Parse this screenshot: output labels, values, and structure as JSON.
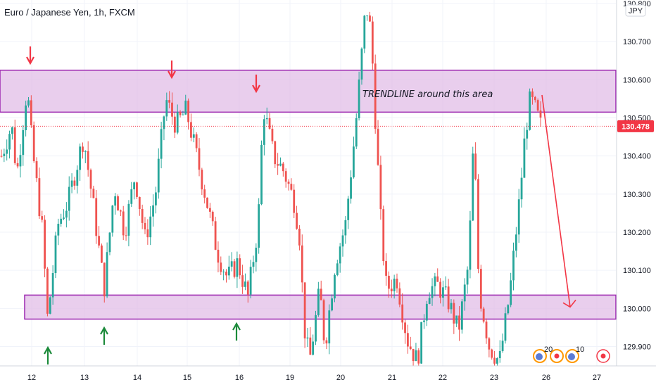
{
  "symbol_title": "Euro / Japanese Yen, 1h, FXCM",
  "currency_badge": "JPY",
  "last_price_label": "130.478",
  "annotation_text": "TRENDLINE around this area",
  "event_badges": [
    "20",
    "10"
  ],
  "colors": {
    "up": "#26a69a",
    "down": "#ef5350",
    "zone_fill": "#e1bee7",
    "zone_border": "#9c27b0",
    "arrow_down": "#f23645",
    "arrow_up": "#1b8a3a",
    "last_price_bg": "#f23645",
    "grid": "#f0f3fa"
  },
  "chart_data": {
    "type": "candlestick",
    "title": "Euro / Japanese Yen, 1h, FXCM",
    "y_axis": {
      "unit": "JPY",
      "range": [
        129.85,
        130.81
      ],
      "ticks": [
        "130.800",
        "130.700",
        "130.600",
        "130.500",
        "130.400",
        "130.300",
        "130.200",
        "130.100",
        "130.000",
        "129.900"
      ]
    },
    "x_axis": {
      "ticks": [
        "12",
        "13",
        "14",
        "15",
        "16",
        "19",
        "20",
        "21",
        "22",
        "23",
        "26",
        "27"
      ]
    },
    "grid": true,
    "last_price": 130.478,
    "last_price_label": "130.478",
    "resistance_zone": [
      130.515,
      130.625
    ],
    "support_zone": [
      129.972,
      130.035
    ],
    "projection": {
      "from": {
        "x": "25",
        "y": 130.56
      },
      "to": {
        "x": "26",
        "y": 130.0
      }
    },
    "annotation": "TRENDLINE around this area",
    "price_path": [
      [
        130.4,
        0
      ],
      [
        130.48,
        2
      ],
      [
        130.35,
        3
      ],
      [
        130.58,
        5
      ],
      [
        130.42,
        6
      ],
      [
        130.2,
        8
      ],
      [
        129.97,
        9
      ],
      [
        130.22,
        11
      ],
      [
        130.28,
        13
      ],
      [
        130.45,
        16
      ],
      [
        130.26,
        18
      ],
      [
        130.05,
        20
      ],
      [
        130.32,
        22
      ],
      [
        130.2,
        24
      ],
      [
        130.35,
        26
      ],
      [
        130.18,
        28
      ],
      [
        130.3,
        30
      ],
      [
        130.55,
        32
      ],
      [
        130.48,
        34
      ],
      [
        130.52,
        36
      ],
      [
        130.4,
        38
      ],
      [
        130.28,
        40
      ],
      [
        130.15,
        42
      ],
      [
        130.08,
        44
      ],
      [
        130.12,
        46
      ],
      [
        130.03,
        48
      ],
      [
        130.22,
        50
      ],
      [
        130.53,
        51
      ],
      [
        130.4,
        53
      ],
      [
        130.36,
        55
      ],
      [
        130.28,
        57
      ],
      [
        130.2,
        58
      ],
      [
        129.95,
        59
      ],
      [
        129.86,
        60
      ],
      [
        130.05,
        62
      ],
      [
        129.9,
        63
      ],
      [
        130.12,
        65
      ],
      [
        130.22,
        67
      ],
      [
        130.48,
        69
      ],
      [
        130.8,
        71
      ],
      [
        130.72,
        72
      ],
      [
        130.45,
        73
      ],
      [
        130.2,
        74
      ],
      [
        130.05,
        75
      ],
      [
        130.08,
        77
      ],
      [
        129.92,
        79
      ],
      [
        129.86,
        81
      ],
      [
        130.05,
        83
      ],
      [
        130.06,
        85
      ],
      [
        130.02,
        87
      ],
      [
        129.94,
        89
      ],
      [
        130.12,
        91
      ],
      [
        130.46,
        92
      ],
      [
        130.05,
        93
      ],
      [
        129.9,
        95
      ],
      [
        129.86,
        97
      ],
      [
        130.04,
        99
      ],
      [
        130.3,
        101
      ],
      [
        130.46,
        102
      ],
      [
        130.55,
        103
      ],
      [
        130.52,
        104
      ],
      [
        130.48,
        105
      ]
    ]
  }
}
